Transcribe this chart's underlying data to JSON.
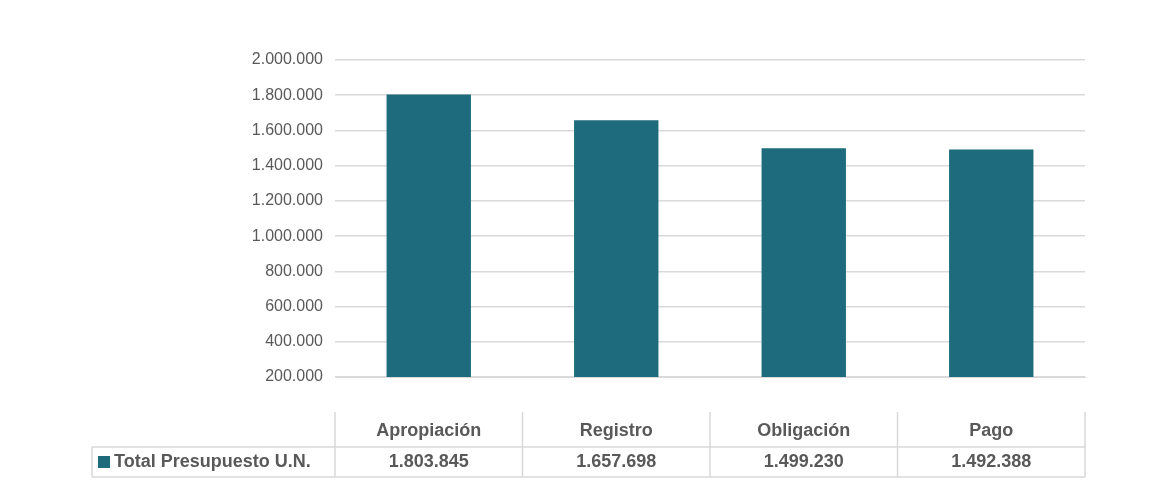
{
  "chart_data": {
    "type": "bar",
    "categories": [
      "Apropiación",
      "Registro",
      "Obligación",
      "Pago"
    ],
    "series": [
      {
        "name": "Total Presupuesto U.N.",
        "color": "#1d6b7d",
        "values": [
          1803845,
          1657698,
          1499230,
          1492388
        ],
        "value_labels": [
          "1.803.845",
          "1.657.698",
          "1.499.230",
          "1.492.388"
        ]
      }
    ],
    "ylim": [
      200000,
      2000000
    ],
    "yticks": [
      {
        "value": 200000,
        "label": "200.000"
      },
      {
        "value": 400000,
        "label": "400.000"
      },
      {
        "value": 600000,
        "label": "600.000"
      },
      {
        "value": 800000,
        "label": "800.000"
      },
      {
        "value": 1000000,
        "label": "1.000.000"
      },
      {
        "value": 1200000,
        "label": "1.200.000"
      },
      {
        "value": 1400000,
        "label": "1.400.000"
      },
      {
        "value": 1600000,
        "label": "1.600.000"
      },
      {
        "value": 1800000,
        "label": "1.800.000"
      },
      {
        "value": 2000000,
        "label": "2.000.000"
      }
    ],
    "grid": "y",
    "legend": "bottom"
  }
}
